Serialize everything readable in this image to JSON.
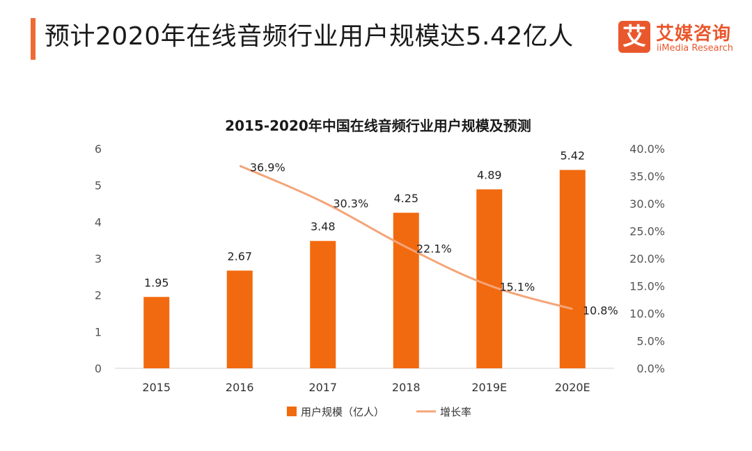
{
  "header": {
    "title": "预计2020年在线音频行业用户规模达5.42亿人"
  },
  "logo": {
    "mark": "艾",
    "name_cn": "艾媒咨询",
    "name_en": "iiMedia Research"
  },
  "colors": {
    "accent": "#f06a35",
    "bar": "#f26a0f",
    "line": "#f4a478",
    "axis": "#d0d0d0"
  },
  "chart_data": {
    "type": "bar",
    "title": "2015-2020年中国在线音频行业用户规模及预测",
    "categories": [
      "2015",
      "2016",
      "2017",
      "2018",
      "2019E",
      "2020E"
    ],
    "series": [
      {
        "name": "用户规模（亿人）",
        "type": "bar",
        "axis": "left",
        "values": [
          1.95,
          2.67,
          3.48,
          4.25,
          4.89,
          5.42
        ],
        "labels": [
          "1.95",
          "2.67",
          "3.48",
          "4.25",
          "4.89",
          "5.42"
        ]
      },
      {
        "name": "增长率",
        "type": "line",
        "axis": "right",
        "values": [
          null,
          36.9,
          30.3,
          22.1,
          15.1,
          10.8
        ],
        "labels": [
          "",
          "36.9%",
          "30.3%",
          "22.1%",
          "15.1%",
          "10.8%"
        ]
      }
    ],
    "ylim_left": [
      0,
      6
    ],
    "yticks_left": [
      "0",
      "1",
      "2",
      "3",
      "4",
      "5",
      "6"
    ],
    "ylim_right": [
      0,
      40
    ],
    "yticks_right": [
      "0.0%",
      "5.0%",
      "10.0%",
      "15.0%",
      "20.0%",
      "25.0%",
      "30.0%",
      "35.0%",
      "40.0%"
    ],
    "legend_position": "bottom-center",
    "grid": false
  }
}
